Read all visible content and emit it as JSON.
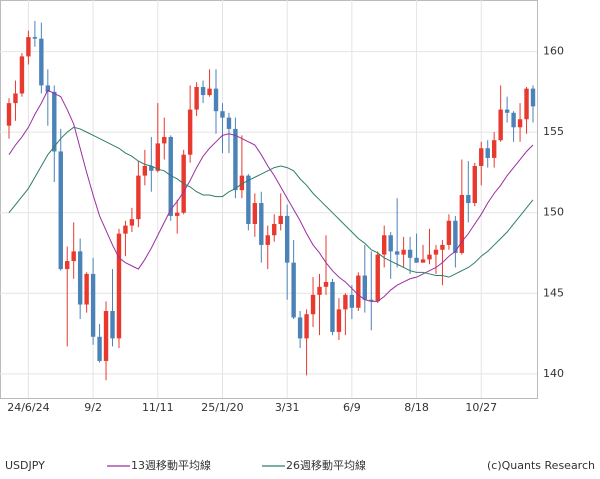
{
  "chart_data": {
    "type": "candlestick",
    "categories": [
      null,
      null,
      null,
      "24/6/24",
      null,
      null,
      null,
      null,
      null,
      null,
      null,
      null,
      null,
      "9/2",
      null,
      null,
      null,
      null,
      null,
      null,
      null,
      null,
      null,
      "11/11",
      null,
      null,
      null,
      null,
      null,
      null,
      null,
      null,
      null,
      "25/1/20",
      null,
      null,
      null,
      null,
      null,
      null,
      null,
      null,
      null,
      "3/31",
      null,
      null,
      null,
      null,
      null,
      null,
      null,
      null,
      null,
      "6/9",
      null,
      null,
      null,
      null,
      null,
      null,
      null,
      null,
      null,
      "8/18",
      null,
      null,
      null,
      null,
      null,
      null,
      null,
      null,
      null,
      "10/27",
      null,
      null,
      null,
      null,
      null,
      null,
      null,
      null
    ],
    "ylim": [
      138.5,
      163.2
    ],
    "yticks": [
      140,
      145,
      150,
      155,
      160
    ],
    "grid": true,
    "candles": {
      "name": "USDJPY",
      "up_color": "#e8392f",
      "down_color": "#4b82b8",
      "open": [
        155.4,
        156.8,
        157.4,
        159.7,
        160.9,
        160.8,
        157.9,
        157.5,
        153.8,
        146.5,
        147.0,
        147.6,
        144.3,
        146.2,
        142.3,
        140.8,
        143.9,
        142.2,
        148.7,
        149.2,
        149.6,
        152.3,
        152.9,
        152.6,
        154.3,
        154.7,
        149.8,
        150.0,
        153.6,
        156.4,
        157.8,
        157.3,
        157.7,
        156.3,
        155.9,
        155.2,
        151.4,
        152.3,
        149.3,
        150.6,
        148.0,
        148.6,
        149.3,
        149.8,
        146.9,
        143.5,
        142.2,
        143.7,
        144.9,
        145.4,
        145.7,
        142.6,
        144.0,
        144.9,
        144.1,
        146.1,
        144.6,
        144.5,
        147.4,
        148.6,
        147.6,
        147.4,
        147.7,
        147.2,
        146.9,
        147.1,
        147.4,
        147.7,
        148.0,
        149.5,
        147.5,
        151.1,
        150.6,
        152.9,
        154.0,
        153.4,
        154.5,
        156.4,
        156.2,
        155.3,
        155.8,
        157.7
      ],
      "high": [
        157.1,
        158.2,
        159.9,
        161.3,
        161.9,
        161.8,
        158.9,
        157.9,
        155.2,
        147.9,
        149.4,
        148.4,
        146.3,
        147.2,
        143.1,
        144.5,
        146.5,
        149.0,
        149.5,
        150.3,
        153.2,
        153.9,
        154.7,
        156.8,
        155.9,
        154.8,
        150.8,
        153.9,
        157.9,
        158.1,
        158.2,
        158.9,
        158.9,
        156.8,
        156.2,
        155.9,
        154.8,
        152.4,
        151.2,
        151.3,
        149.2,
        149.9,
        151.2,
        150.5,
        148.3,
        143.9,
        144.0,
        146.0,
        146.2,
        148.6,
        145.9,
        144.7,
        145.0,
        145.5,
        146.3,
        148.0,
        147.6,
        147.6,
        149.2,
        148.8,
        150.9,
        148.5,
        148.5,
        148.7,
        148.0,
        149.0,
        148.0,
        148.3,
        149.9,
        149.8,
        153.3,
        153.2,
        153.1,
        154.4,
        154.5,
        155.0,
        157.9,
        157.2,
        156.3,
        156.8,
        157.8,
        157.9
      ],
      "low": [
        154.6,
        155.7,
        157.2,
        159.2,
        160.3,
        157.4,
        155.4,
        151.9,
        146.4,
        141.7,
        145.9,
        143.4,
        143.8,
        141.8,
        140.7,
        139.6,
        141.7,
        141.6,
        147.3,
        148.8,
        149.1,
        151.7,
        151.3,
        152.5,
        153.3,
        149.5,
        148.7,
        149.9,
        153.1,
        156.0,
        156.8,
        157.2,
        154.9,
        153.7,
        153.7,
        150.9,
        150.9,
        148.9,
        148.5,
        146.9,
        146.5,
        148.2,
        148.9,
        144.6,
        143.4,
        141.6,
        139.9,
        142.9,
        142.4,
        144.9,
        142.4,
        142.1,
        142.4,
        143.4,
        143.9,
        143.8,
        142.7,
        144.4,
        146.6,
        145.9,
        146.6,
        146.6,
        146.2,
        146.9,
        146.9,
        146.8,
        146.2,
        145.5,
        147.7,
        146.6,
        147.4,
        149.4,
        150.4,
        151.7,
        152.8,
        152.8,
        154.4,
        155.6,
        154.4,
        154.4,
        154.9,
        155.6
      ],
      "close": [
        156.8,
        157.4,
        159.7,
        160.9,
        160.8,
        157.9,
        157.5,
        153.8,
        146.5,
        147.0,
        147.6,
        144.3,
        146.2,
        142.3,
        140.8,
        143.9,
        142.2,
        148.7,
        149.2,
        149.6,
        152.3,
        152.9,
        152.6,
        154.3,
        154.7,
        149.8,
        150.0,
        153.6,
        156.4,
        157.8,
        157.3,
        157.7,
        156.3,
        155.9,
        155.2,
        151.4,
        152.3,
        149.3,
        150.6,
        148.0,
        148.6,
        149.3,
        149.8,
        146.9,
        143.5,
        142.2,
        143.7,
        144.9,
        145.4,
        145.7,
        142.6,
        144.0,
        144.9,
        144.1,
        146.1,
        144.6,
        144.5,
        147.4,
        148.6,
        147.6,
        147.4,
        147.7,
        147.2,
        146.9,
        147.1,
        147.4,
        147.7,
        148.0,
        149.5,
        147.5,
        151.1,
        150.6,
        152.9,
        154.0,
        153.4,
        154.5,
        156.4,
        156.2,
        155.3,
        155.8,
        157.7,
        156.6
      ]
    },
    "series": [
      {
        "name": "13週移動平均線",
        "color": "#9b2fa0",
        "values": [
          153.6,
          154.2,
          154.7,
          155.3,
          156.1,
          156.8,
          157.6,
          157.4,
          157.2,
          156.4,
          155.5,
          154.0,
          152.5,
          151.1,
          149.8,
          148.9,
          148.0,
          147.2,
          146.9,
          146.7,
          146.5,
          147.1,
          147.8,
          148.6,
          149.4,
          150.2,
          150.7,
          151.3,
          152.0,
          152.8,
          153.5,
          154.0,
          154.4,
          154.8,
          154.9,
          154.8,
          154.6,
          154.4,
          154.2,
          153.6,
          152.9,
          152.3,
          151.6,
          150.9,
          150.2,
          149.5,
          148.7,
          148.0,
          147.5,
          146.9,
          146.4,
          146.0,
          145.7,
          145.3,
          144.9,
          144.6,
          144.5,
          144.5,
          144.8,
          145.2,
          145.5,
          145.7,
          145.9,
          146.0,
          146.2,
          146.4,
          146.6,
          146.9,
          147.3,
          147.6,
          148.2,
          148.7,
          149.3,
          149.9,
          150.6,
          151.2,
          151.7,
          152.3,
          152.8,
          153.3,
          153.8,
          154.2
        ]
      },
      {
        "name": "26週移動平均線",
        "color": "#2e7d6e",
        "values": [
          150.0,
          150.5,
          151.0,
          151.5,
          152.2,
          152.9,
          153.6,
          154.1,
          154.6,
          155.0,
          155.3,
          155.2,
          155.0,
          154.8,
          154.6,
          154.4,
          154.2,
          154.0,
          153.7,
          153.5,
          153.2,
          153.0,
          152.9,
          152.7,
          152.6,
          152.3,
          152.1,
          151.8,
          151.6,
          151.3,
          151.1,
          151.1,
          151.0,
          151.0,
          151.3,
          151.5,
          151.8,
          152.0,
          152.2,
          152.4,
          152.6,
          152.8,
          152.9,
          152.8,
          152.6,
          152.1,
          151.7,
          151.2,
          150.8,
          150.4,
          150.0,
          149.6,
          149.2,
          148.8,
          148.4,
          148.1,
          147.7,
          147.5,
          147.2,
          147.0,
          146.8,
          146.6,
          146.4,
          146.3,
          146.3,
          146.2,
          146.1,
          146.1,
          146.0,
          146.2,
          146.4,
          146.6,
          146.9,
          147.3,
          147.6,
          148.0,
          148.4,
          148.8,
          149.3,
          149.8,
          150.3,
          150.8
        ]
      }
    ],
    "source": "(c)Quants Research"
  }
}
